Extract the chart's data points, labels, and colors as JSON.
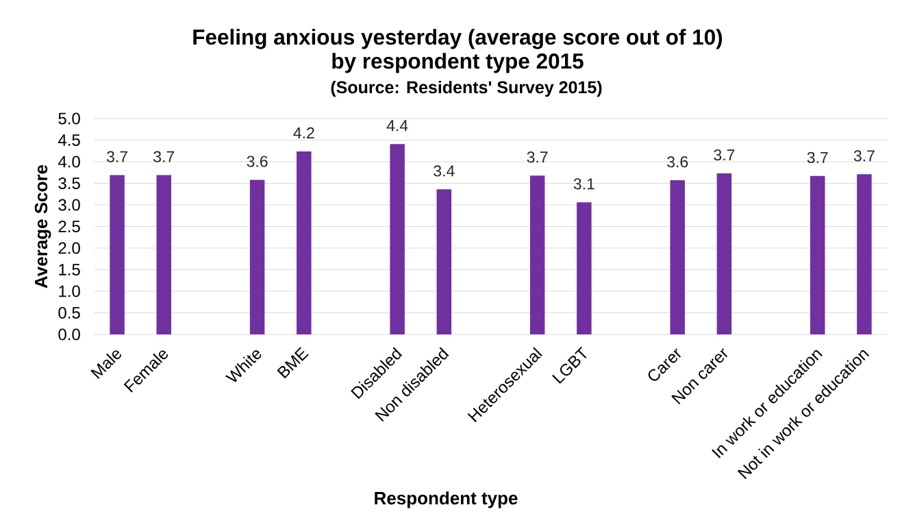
{
  "chart_data": {
    "type": "bar",
    "title": "Feeling anxious yesterday (average score out of 10) by respondent type 2015",
    "subtitle": "(Source: Residents' Survey 2015)",
    "xlabel": "Respondent type",
    "ylabel": "Average Score",
    "categories": [
      "Male",
      "Female",
      null,
      "White",
      "BME",
      null,
      "Disabled",
      "Non disabled",
      null,
      "Heterosexual",
      "LGBT",
      null,
      "Carer",
      "Non carer",
      null,
      "In work or education",
      "Not in work or education"
    ],
    "values": [
      3.69,
      3.69,
      null,
      3.58,
      4.24,
      null,
      4.41,
      3.36,
      null,
      3.68,
      3.06,
      null,
      3.57,
      3.73,
      null,
      3.67,
      3.71
    ],
    "value_labels": [
      "3.7",
      "3.7",
      null,
      "3.6",
      "4.2",
      null,
      "4.4",
      "3.4",
      null,
      "3.7",
      "3.1",
      null,
      "3.6",
      "3.7",
      null,
      "3.7",
      "3.7"
    ],
    "color": "#7030a0",
    "ylim": [
      0,
      5
    ],
    "yticks": [
      {
        "value": 0,
        "label": "0.0"
      },
      {
        "value": 0.5,
        "label": "0.5"
      },
      {
        "value": 1,
        "label": "1.0"
      },
      {
        "value": 1.5,
        "label": "1.5"
      },
      {
        "value": 2,
        "label": "2.0"
      },
      {
        "value": 2.5,
        "label": "2.5"
      },
      {
        "value": 3,
        "label": "3.0"
      },
      {
        "value": 3.5,
        "label": "3.5"
      },
      {
        "value": 4,
        "label": "4.0"
      },
      {
        "value": 4.5,
        "label": "4.5"
      },
      {
        "value": 5,
        "label": "5.0"
      }
    ],
    "grid": "y"
  }
}
